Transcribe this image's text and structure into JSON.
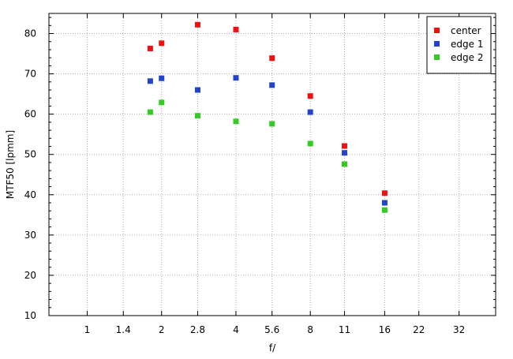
{
  "chart_data": {
    "type": "scatter",
    "title": "",
    "xlabel": "f/",
    "ylabel": "MTF50 [lpmm]",
    "x_scale": "log2",
    "x_ticks": [
      1,
      1.4,
      2,
      2.8,
      4,
      5.6,
      8,
      11,
      16,
      22,
      32
    ],
    "x_tick_labels": [
      "1",
      "1.4",
      "2",
      "2.8",
      "4",
      "5.6",
      "8",
      "11",
      "16",
      "22",
      "32"
    ],
    "xlim": [
      0.7,
      45
    ],
    "ylim": [
      10,
      85
    ],
    "y_ticks": [
      10,
      20,
      30,
      40,
      50,
      60,
      70,
      80
    ],
    "y_tick_labels": [
      "10",
      "20",
      "30",
      "40",
      "50",
      "60",
      "70",
      "80"
    ],
    "grid": true,
    "legend_position": "top-right",
    "series": [
      {
        "name": "center",
        "color": "#ee1111",
        "points": [
          [
            1.8,
            76.3
          ],
          [
            2.0,
            77.6
          ],
          [
            2.8,
            82.2
          ],
          [
            4.0,
            81.0
          ],
          [
            5.6,
            73.9
          ],
          [
            8.0,
            64.5
          ],
          [
            11.0,
            52.1
          ],
          [
            16.0,
            40.4
          ]
        ]
      },
      {
        "name": "edge 1",
        "color": "#2244cc",
        "points": [
          [
            1.8,
            68.2
          ],
          [
            2.0,
            68.9
          ],
          [
            2.8,
            66.0
          ],
          [
            4.0,
            69.0
          ],
          [
            5.6,
            67.2
          ],
          [
            8.0,
            60.5
          ],
          [
            11.0,
            50.4
          ],
          [
            16.0,
            38.0
          ]
        ]
      },
      {
        "name": "edge 2",
        "color": "#33cc22",
        "points": [
          [
            1.8,
            60.5
          ],
          [
            2.0,
            62.9
          ],
          [
            2.8,
            59.6
          ],
          [
            4.0,
            58.2
          ],
          [
            5.6,
            57.6
          ],
          [
            8.0,
            52.7
          ],
          [
            11.0,
            47.6
          ],
          [
            16.0,
            36.2
          ]
        ]
      }
    ]
  }
}
